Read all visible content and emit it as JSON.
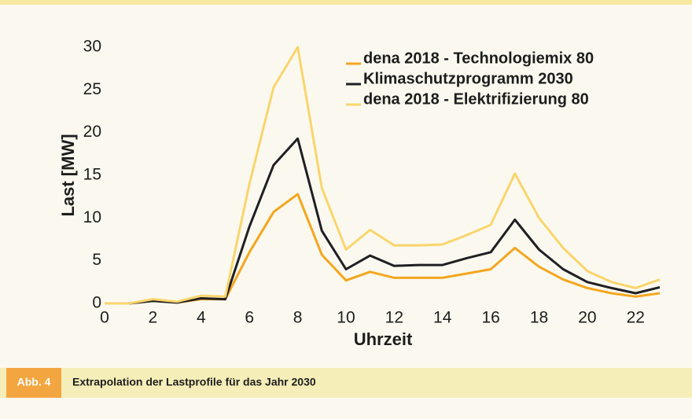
{
  "chart_data": {
    "type": "line",
    "ylabel": "Last [MW]",
    "xlabel": "Uhrzeit",
    "x": [
      0,
      1,
      2,
      3,
      4,
      5,
      6,
      7,
      8,
      9,
      10,
      11,
      12,
      13,
      14,
      15,
      16,
      17,
      18,
      19,
      20,
      21,
      22,
      23
    ],
    "series": [
      {
        "name": "dena 2018 - Technologiemix 80",
        "color": "#f4a620",
        "values": [
          0,
          0,
          0.3,
          0.1,
          0.5,
          0.5,
          6,
          10.7,
          12.8,
          5.7,
          2.7,
          3.7,
          3,
          3,
          3,
          3.5,
          4,
          6.5,
          4.3,
          2.8,
          1.8,
          1.2,
          0.8,
          1.2
        ]
      },
      {
        "name": "Klimaschutzprogramm 2030",
        "color": "#1f1f24",
        "values": [
          0,
          0,
          0.3,
          0.1,
          0.6,
          0.5,
          9,
          16.2,
          19.3,
          8.5,
          4,
          5.6,
          4.4,
          4.5,
          4.5,
          5.3,
          6,
          9.8,
          6.3,
          4,
          2.5,
          1.8,
          1.2,
          1.9
        ]
      },
      {
        "name": "dena 2018 - Elektrifizierung 80",
        "color": "#fbd46c",
        "values": [
          0,
          0,
          0.5,
          0.2,
          0.9,
          0.8,
          14,
          25.3,
          30,
          13.5,
          6.3,
          8.6,
          6.8,
          6.8,
          6.9,
          8,
          9.2,
          15.2,
          10,
          6.5,
          3.8,
          2.5,
          1.8,
          2.8
        ]
      }
    ],
    "xlim": [
      0,
      23
    ],
    "xticks": [
      0,
      2,
      4,
      6,
      8,
      10,
      12,
      14,
      16,
      18,
      20,
      22
    ],
    "ylim": [
      0,
      30
    ],
    "yticks": [
      0,
      5,
      10,
      15,
      20,
      25,
      30
    ],
    "grid": false,
    "legend": "upper right"
  },
  "caption": {
    "label": "Abb. 4",
    "text": "Extrapolation der Lastprofile für das Jahr 2030"
  }
}
